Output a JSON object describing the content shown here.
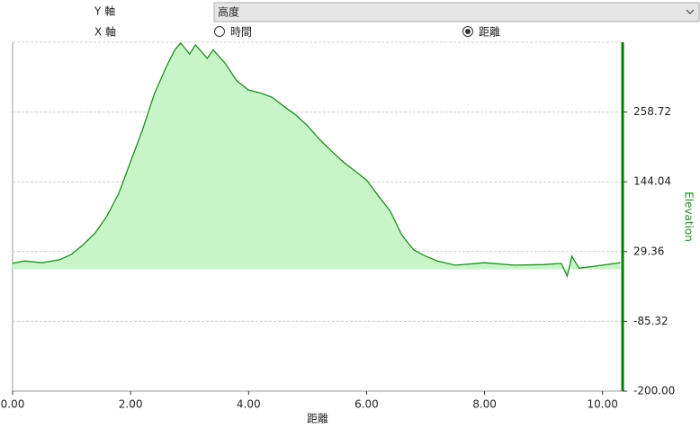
{
  "controls": {
    "y_axis_label": "Y 軸",
    "y_axis_select": "高度",
    "x_axis_label": "X 軸",
    "x_options": [
      "時間",
      "距離"
    ],
    "x_selected": 1
  },
  "chart_data": {
    "type": "area",
    "x_label": "距離",
    "y2_label": "Elevation",
    "x": [
      0.0,
      0.2,
      0.5,
      0.8,
      1.0,
      1.2,
      1.4,
      1.6,
      1.8,
      2.0,
      2.2,
      2.4,
      2.6,
      2.75,
      2.85,
      3.0,
      3.1,
      3.3,
      3.4,
      3.6,
      3.8,
      4.0,
      4.2,
      4.4,
      4.6,
      4.8,
      5.0,
      5.2,
      5.4,
      5.6,
      5.8,
      6.0,
      6.2,
      6.4,
      6.6,
      6.8,
      7.0,
      7.2,
      7.5,
      8.0,
      8.5,
      9.0,
      9.3,
      9.4,
      9.48,
      9.6,
      10.0,
      10.3
    ],
    "series": [
      {
        "name": "Elevation",
        "color": "#228b22",
        "fill": "#c8f5c8",
        "axis": "y2",
        "values": [
          10,
          14,
          11,
          16,
          25,
          41,
          60,
          88,
          125,
          177,
          229,
          288,
          332,
          361,
          372,
          354,
          369,
          347,
          361,
          339,
          310,
          295,
          290,
          283,
          268,
          254,
          236,
          214,
          195,
          177,
          162,
          147,
          121,
          96,
          56,
          32,
          22,
          14,
          7,
          11,
          7,
          8,
          10,
          -11,
          22,
          2,
          7,
          11
        ]
      }
    ],
    "xlim": [
      0,
      10.34
    ],
    "xticks": [
      {
        "value": 0,
        "label": "0.00"
      },
      {
        "value": 2,
        "label": "2.00"
      },
      {
        "value": 4,
        "label": "4.00"
      },
      {
        "value": 6,
        "label": "6.00"
      },
      {
        "value": 8,
        "label": "8.00"
      },
      {
        "value": 10,
        "label": "10.00"
      }
    ],
    "y2lim": [
      -200,
      373.4
    ],
    "y2ticks": [
      {
        "value": -200,
        "label": "-200.00"
      },
      -85.32,
      29.36,
      144.04,
      258.72
    ],
    "grid": true
  }
}
